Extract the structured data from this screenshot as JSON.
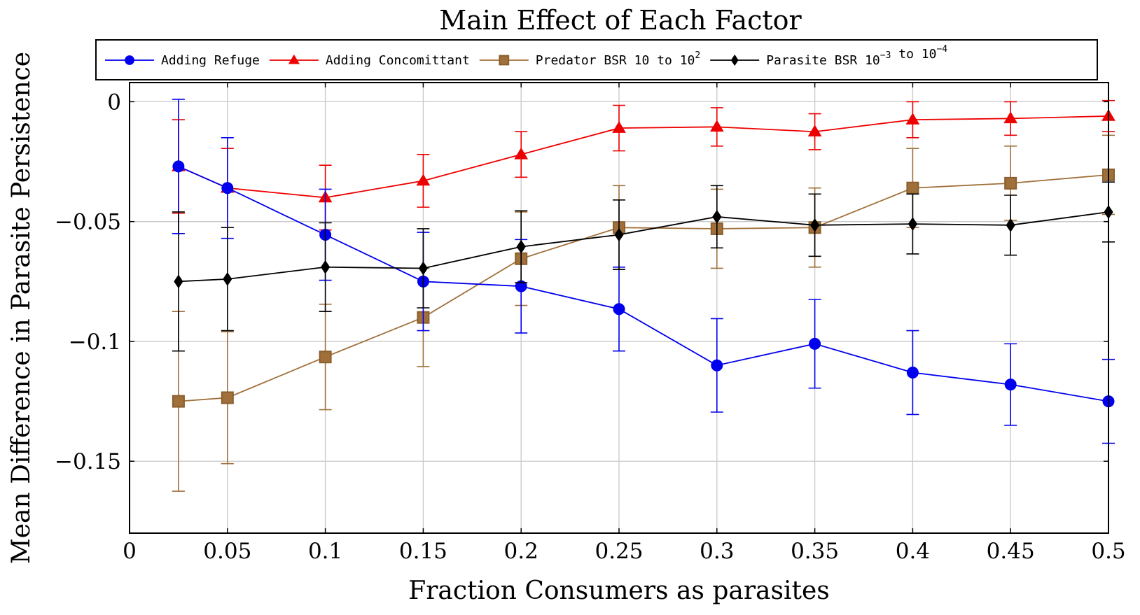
{
  "chart_data": {
    "type": "line",
    "title": "Main Effect of Each Factor",
    "xlabel": "Fraction Consumers as parasites",
    "ylabel": "Mean Difference in Parasite Persistence",
    "xlim": [
      0,
      0.5
    ],
    "ylim": [
      -0.18,
      0.008
    ],
    "xticks": [
      {
        "value": 0,
        "label": "0"
      },
      {
        "value": 0.05,
        "label": "0.05"
      },
      {
        "value": 0.1,
        "label": "0.1"
      },
      {
        "value": 0.15,
        "label": "0.15"
      },
      {
        "value": 0.2,
        "label": "0.2"
      },
      {
        "value": 0.25,
        "label": "0.25"
      },
      {
        "value": 0.3,
        "label": "0.3"
      },
      {
        "value": 0.35,
        "label": "0.35"
      },
      {
        "value": 0.4,
        "label": "0.4"
      },
      {
        "value": 0.45,
        "label": "0.45"
      },
      {
        "value": 0.5,
        "label": "0.5"
      }
    ],
    "yticks": [
      {
        "value": 0,
        "label": "0"
      },
      {
        "value": -0.05,
        "label": "−0.05"
      },
      {
        "value": -0.1,
        "label": "−0.1"
      },
      {
        "value": -0.15,
        "label": "−0.15"
      }
    ],
    "grid": true,
    "legend_position": "top",
    "x": [
      0.025,
      0.05,
      0.1,
      0.15,
      0.2,
      0.25,
      0.3,
      0.35,
      0.4,
      0.45,
      0.5
    ],
    "series": [
      {
        "name": "Adding Refuge",
        "legend_parts": [
          {
            "text": "Adding Refuge"
          }
        ],
        "color": "#0000ee",
        "marker": "circle",
        "values": [
          -0.027,
          -0.036,
          -0.0555,
          -0.075,
          -0.077,
          -0.0865,
          -0.11,
          -0.101,
          -0.113,
          -0.118,
          -0.125
        ],
        "error": [
          0.028,
          0.021,
          0.019,
          0.0205,
          0.0195,
          0.0175,
          0.0195,
          0.0185,
          0.0175,
          0.017,
          0.0175
        ]
      },
      {
        "name": "Adding Concomittant",
        "legend_parts": [
          {
            "text": "Adding Concomittant"
          }
        ],
        "color": "#ee0000",
        "marker": "triangle",
        "values": [
          -0.027,
          -0.036,
          -0.04,
          -0.033,
          -0.022,
          -0.011,
          -0.0105,
          -0.0125,
          -0.0075,
          -0.007,
          -0.006
        ],
        "error": [
          0.0195,
          0.0165,
          0.0135,
          0.011,
          0.0095,
          0.0095,
          0.008,
          0.0075,
          0.0075,
          0.007,
          0.0065
        ]
      },
      {
        "name": "Predator BSR 10 to 10^2",
        "legend_parts": [
          {
            "text": "Predator BSR 10 to 10"
          },
          {
            "sup": "2"
          }
        ],
        "color": "#a0703a",
        "marker": "square",
        "values": [
          -0.125,
          -0.1235,
          -0.1065,
          -0.09,
          -0.0655,
          -0.0525,
          -0.053,
          -0.0525,
          -0.036,
          -0.034,
          -0.0305
        ],
        "error": [
          0.0375,
          0.0275,
          0.022,
          0.0205,
          0.0195,
          0.0175,
          0.0165,
          0.0165,
          0.0165,
          0.0155,
          0.0165
        ]
      },
      {
        "name": "Parasite BSR 10^-3 to 10^-4",
        "legend_parts": [
          {
            "text": "Parasite BSR 10"
          },
          {
            "sup": "−3"
          },
          {
            "text": " to 10"
          },
          {
            "sup": "−4"
          }
        ],
        "color": "#000000",
        "marker": "diamond",
        "values": [
          -0.075,
          -0.074,
          -0.069,
          -0.0695,
          -0.0605,
          -0.0555,
          -0.048,
          -0.0515,
          -0.051,
          -0.0515,
          -0.046
        ],
        "error": [
          0.029,
          0.0215,
          0.0185,
          0.0165,
          0.015,
          0.0145,
          0.013,
          0.013,
          0.0125,
          0.0125,
          0.0125
        ]
      }
    ]
  }
}
